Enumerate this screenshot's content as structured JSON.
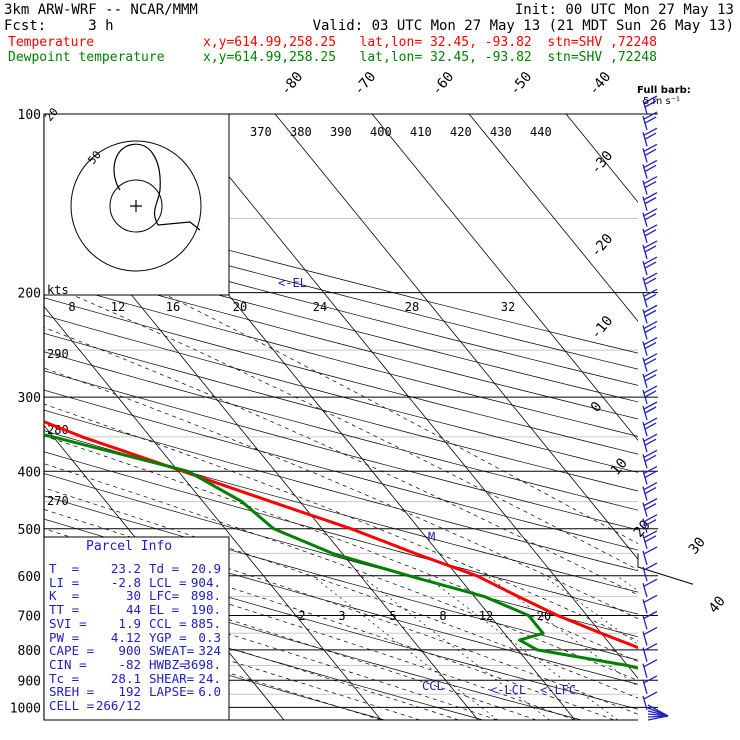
{
  "header": {
    "line1_left": "3km ARW-WRF -- NCAR/MMM",
    "line1_right": "Init: 00 UTC Mon 27 May 13",
    "line2_left": "Fcst:     3 h",
    "line2_right": "Valid: 03 UTC Mon 27 May 13 (21 MDT Sun 26 May 13)",
    "temp_label": "Temperature",
    "temp_info": "x,y=614.99,258.25   lat,lon= 32.45, -93.82  stn=SHV ,72248",
    "dew_label": "Dewpoint temperature",
    "dew_info": "x,y=614.99,258.25   lat,lon= 32.45, -93.82  stn=SHV ,72248",
    "full_barb": "Full barb:",
    "full_barb_units": "5 m s⁻¹"
  },
  "colors": {
    "temperature": "#ff0000",
    "dewpoint": "#008000",
    "wind": "#2020c0",
    "hodograph": "#000000"
  },
  "chart_data": {
    "type": "line",
    "subtype": "skew-T log-p",
    "pressure_ticks": [
      "100",
      "200",
      "300",
      "400",
      "500",
      "600",
      "700",
      "800",
      "900",
      "1000"
    ],
    "isotherm_labels": [
      "-80",
      "-70",
      "-60",
      "-50",
      "-40",
      "-30",
      "-20",
      "-10",
      "0",
      "10",
      "20",
      "30",
      "40"
    ],
    "theta_labels": [
      "370",
      "380",
      "390",
      "400",
      "410",
      "420",
      "430",
      "440"
    ],
    "theta_left_labels": [
      "290",
      "280",
      "270"
    ],
    "mixing_ratio_labels": [
      "2",
      "3",
      "5",
      "8",
      "12",
      "20"
    ],
    "hodo_speed_labels": [
      "8",
      "12",
      "16",
      "20",
      "24",
      "28",
      "32"
    ],
    "hodo_units": "kts",
    "hodo_ring_labels": [
      "20",
      "50"
    ],
    "annotations": {
      "el": "<-EL",
      "m": "M",
      "ccl": "CCL",
      "lcl": "<-LCL",
      "lfc": "<-LFC"
    },
    "series": [
      {
        "name": "Temperature",
        "points": [
          [
            1000,
            24
          ],
          [
            980,
            25
          ],
          [
            950,
            20
          ],
          [
            930,
            19
          ],
          [
            900,
            17
          ],
          [
            850,
            15
          ],
          [
            800,
            13
          ],
          [
            750,
            10
          ],
          [
            700,
            7
          ],
          [
            650,
            4.5
          ],
          [
            600,
            2
          ],
          [
            550,
            -2.5
          ],
          [
            500,
            -7
          ],
          [
            450,
            -13
          ],
          [
            400,
            -19.5
          ],
          [
            350,
            -27
          ],
          [
            300,
            -34
          ],
          [
            250,
            -43
          ],
          [
            200,
            -53
          ],
          [
            175,
            -57
          ],
          [
            150,
            -60
          ],
          [
            125,
            -63
          ],
          [
            100,
            -67
          ]
        ]
      },
      {
        "name": "Dewpoint temperature",
        "points": [
          [
            1000,
            20
          ],
          [
            980,
            20
          ],
          [
            950,
            19
          ],
          [
            930,
            19.5
          ],
          [
            900,
            15
          ],
          [
            850,
            10
          ],
          [
            800,
            2
          ],
          [
            770,
            1
          ],
          [
            750,
            4
          ],
          [
            700,
            4
          ],
          [
            650,
            1
          ],
          [
            600,
            -5
          ],
          [
            550,
            -11
          ],
          [
            500,
            -15
          ],
          [
            450,
            -16
          ],
          [
            400,
            -19
          ],
          [
            350,
            -30
          ],
          [
            300,
            -46
          ],
          [
            250,
            -64
          ],
          [
            220,
            -72
          ],
          [
            200,
            -80
          ],
          [
            180,
            -82
          ],
          [
            150,
            -85
          ],
          [
            125,
            -88
          ],
          [
            100,
            -92
          ]
        ]
      }
    ],
    "wind_barb_count": 38
  },
  "parcel_info": {
    "title": "Parcel Info",
    "rows": [
      [
        "T  =",
        "23.2",
        "Td =",
        "20.9"
      ],
      [
        "LI =",
        "-2.8",
        "LCL =",
        "904."
      ],
      [
        "K  =",
        "30",
        "LFC=",
        "898."
      ],
      [
        "TT =",
        "44",
        "EL =",
        "190."
      ],
      [
        "SVI =",
        "1.9",
        "CCL =",
        "885."
      ],
      [
        "PW =",
        "4.12",
        "YGP =",
        "0.3"
      ],
      [
        "CAPE =",
        "900",
        "SWEAT=",
        "324"
      ],
      [
        "CIN =",
        "-82",
        "HWBZ=",
        "3698."
      ],
      [
        "Tc =",
        "28.1",
        "SHEAR=",
        "24."
      ],
      [
        "SREH =",
        "192",
        "LAPSE=",
        "6.0"
      ],
      [
        "CELL =",
        "266/12",
        "",
        ""
      ]
    ]
  }
}
